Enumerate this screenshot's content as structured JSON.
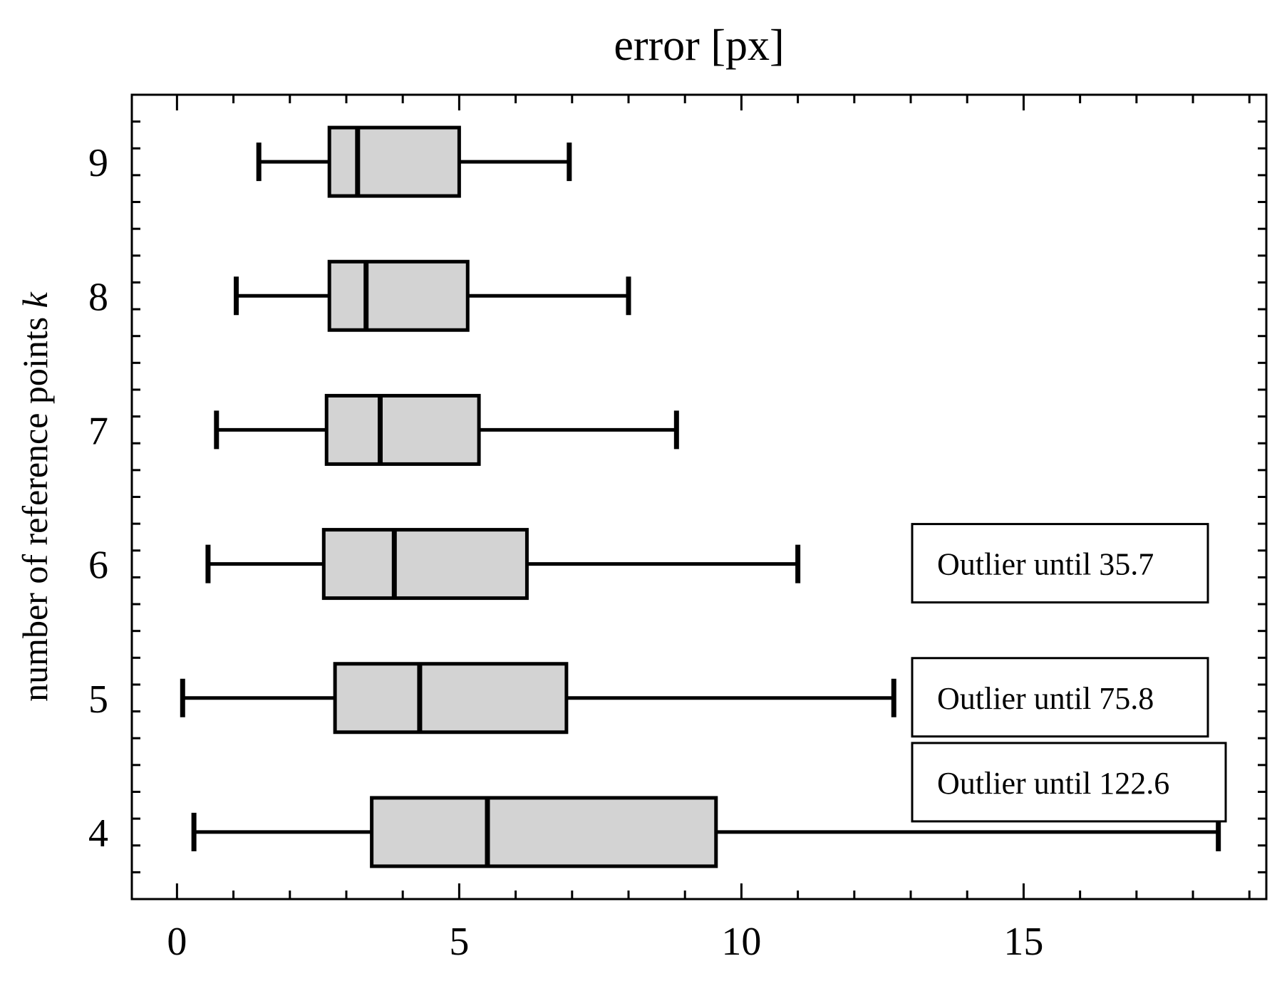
{
  "chart_data": {
    "type": "box",
    "orientation": "horizontal",
    "title": "error [px]",
    "xlabel": "",
    "ylabel": "number of reference points k",
    "xlim": [
      -0.8,
      19.3
    ],
    "ylim": [
      3.5,
      9.5
    ],
    "xticks": [
      0,
      5,
      10,
      15
    ],
    "yticks": [
      4,
      5,
      6,
      7,
      8,
      9
    ],
    "box_fill": "#d3d3d3",
    "series": [
      {
        "k": 9,
        "whislo": 1.45,
        "q1": 2.7,
        "med": 3.2,
        "q3": 5.0,
        "whishi": 6.95
      },
      {
        "k": 8,
        "whislo": 1.05,
        "q1": 2.7,
        "med": 3.35,
        "q3": 5.15,
        "whishi": 8.0
      },
      {
        "k": 7,
        "whislo": 0.7,
        "q1": 2.65,
        "med": 3.6,
        "q3": 5.35,
        "whishi": 8.85
      },
      {
        "k": 6,
        "whislo": 0.55,
        "q1": 2.6,
        "med": 3.85,
        "q3": 6.2,
        "whishi": 11.0
      },
      {
        "k": 5,
        "whislo": 0.1,
        "q1": 2.8,
        "med": 4.3,
        "q3": 6.9,
        "whishi": 12.7
      },
      {
        "k": 4,
        "whislo": 0.3,
        "q1": 3.45,
        "med": 5.5,
        "q3": 9.55,
        "whishi": 18.45
      }
    ],
    "annotations": [
      {
        "text": "Outlier until 35.7",
        "k": 6
      },
      {
        "text": "Outlier until 75.8",
        "k": 5
      },
      {
        "text": "Outlier until 122.6",
        "k": 4
      }
    ]
  }
}
